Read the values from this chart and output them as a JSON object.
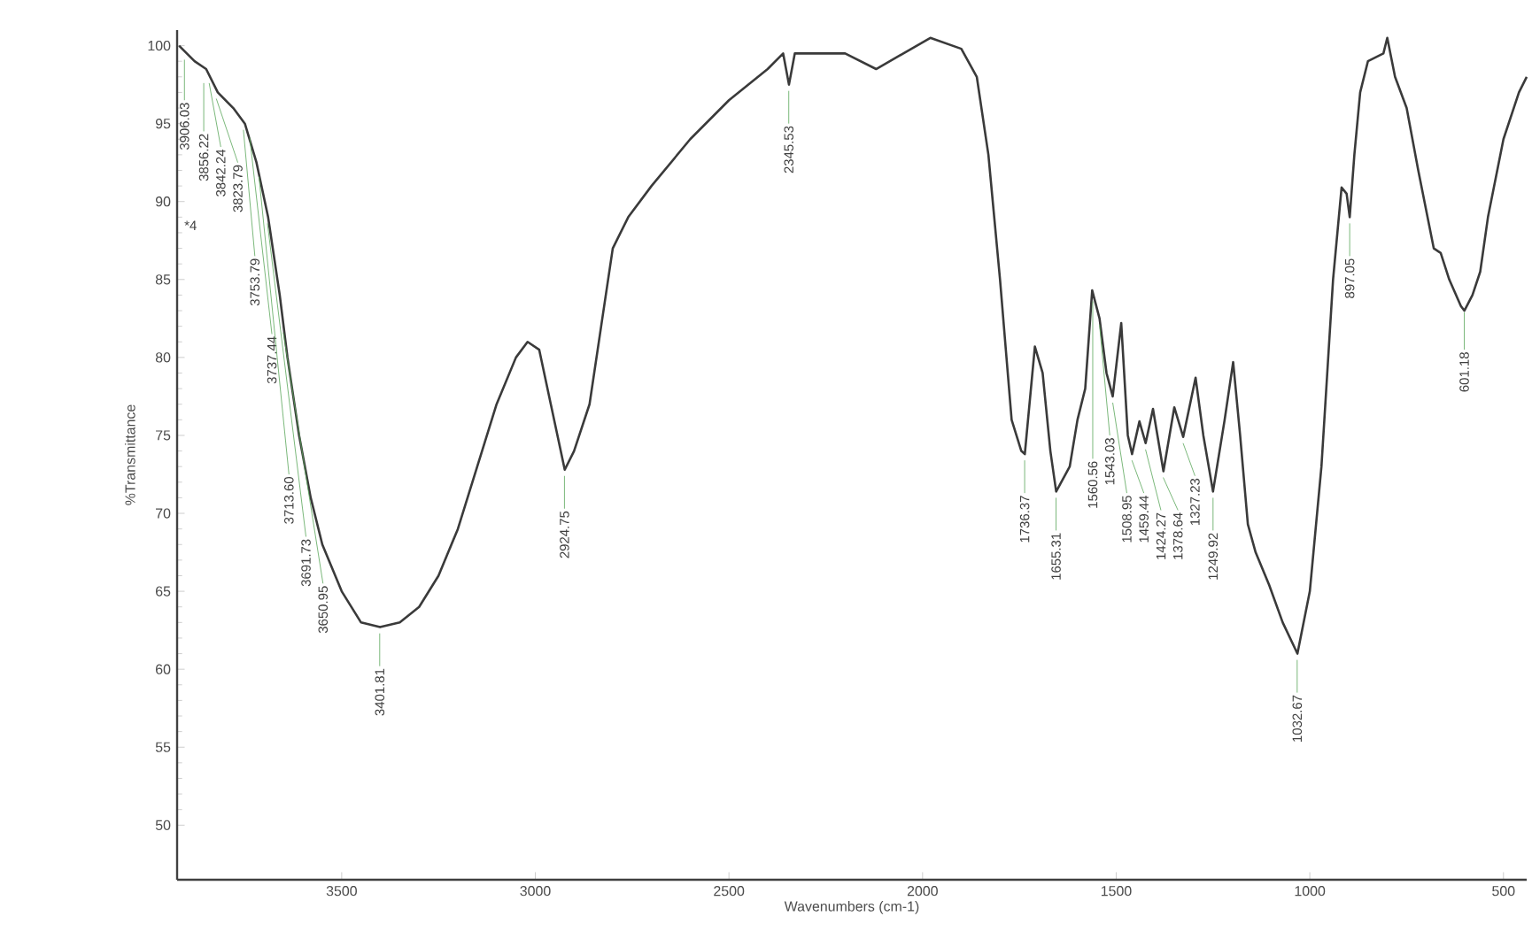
{
  "chart_data": {
    "type": "line",
    "xlabel": "Wavenumbers (cm-1)",
    "ylabel": "%Transmittance",
    "xlim": [
      3925,
      440
    ],
    "ylim": [
      46.5,
      101
    ],
    "xticks": [
      3500,
      3000,
      2500,
      2000,
      1500,
      1000,
      500
    ],
    "yticks": [
      50,
      55,
      60,
      65,
      70,
      75,
      80,
      85,
      90,
      95,
      100
    ],
    "marker": "none",
    "line_style": "solid",
    "series": [
      {
        "color": "#3a3a3a",
        "x": [
          3920,
          3880,
          3850,
          3820,
          3780,
          3750,
          3720,
          3690,
          3660,
          3640,
          3610,
          3580,
          3550,
          3500,
          3450,
          3401,
          3350,
          3300,
          3250,
          3200,
          3150,
          3100,
          3050,
          3020,
          2990,
          2960,
          2924,
          2900,
          2860,
          2830,
          2800,
          2760,
          2700,
          2600,
          2500,
          2400,
          2360,
          2345,
          2330,
          2200,
          2120,
          2050,
          1980,
          1900,
          1860,
          1830,
          1800,
          1770,
          1745,
          1736,
          1710,
          1690,
          1670,
          1655,
          1620,
          1600,
          1580,
          1562,
          1543,
          1525,
          1509,
          1487,
          1470,
          1459,
          1440,
          1424,
          1405,
          1378,
          1350,
          1327,
          1295,
          1275,
          1250,
          1220,
          1198,
          1180,
          1160,
          1140,
          1105,
          1070,
          1032,
          1000,
          970,
          940,
          918,
          905,
          897,
          885,
          870,
          850,
          810,
          800,
          780,
          750,
          720,
          680,
          662,
          640,
          610,
          601,
          580,
          560,
          540,
          500,
          460,
          440
        ],
        "values": [
          100,
          99,
          98.5,
          97,
          96,
          95,
          92.5,
          89,
          84,
          80,
          75,
          71,
          68,
          65,
          63,
          62.7,
          63,
          64,
          66,
          69,
          73,
          77,
          80,
          81,
          80.5,
          77,
          72.8,
          74,
          77,
          82,
          87,
          89,
          91,
          94,
          96.5,
          98.5,
          99.5,
          97.5,
          99.5,
          99.5,
          98.5,
          99.5,
          100.5,
          99.8,
          98,
          93,
          85,
          76,
          74,
          73.8,
          80.7,
          79,
          74,
          71.4,
          73,
          76,
          78,
          84.3,
          82.5,
          79,
          77.5,
          82.2,
          75,
          73.8,
          75.9,
          74.5,
          76.7,
          72.7,
          76.8,
          74.9,
          78.7,
          75,
          71.4,
          76,
          79.7,
          75,
          69.3,
          67.5,
          65.4,
          63,
          61,
          65,
          73,
          85,
          90.9,
          90.5,
          89,
          93,
          97,
          99,
          99.5,
          100.5,
          98,
          96,
          92,
          87,
          86.7,
          85,
          83.3,
          83,
          84,
          85.5,
          89,
          94,
          97,
          98
        ]
      }
    ],
    "annotations": [
      "*4",
      {
        "text": "3906.03",
        "x": 3906.03,
        "y": 99.5
      },
      {
        "text": "3856.22",
        "x": 3856.22,
        "y": 98
      },
      {
        "text": "3842.24",
        "x": 3842.24,
        "y": 98
      },
      {
        "text": "3823.79",
        "x": 3823.79,
        "y": 97
      },
      {
        "text": "3753.79",
        "x": 3753.79,
        "y": 95
      },
      {
        "text": "3737.44",
        "x": 3737.44,
        "y": 94.5
      },
      {
        "text": "3713.60",
        "x": 3713.6,
        "y": 92
      },
      {
        "text": "3691.73",
        "x": 3691.73,
        "y": 89
      },
      {
        "text": "3650.95",
        "x": 3650.95,
        "y": 82
      },
      {
        "text": "3401.81",
        "x": 3401.81,
        "y": 62.7
      },
      {
        "text": "2924.75",
        "x": 2924.75,
        "y": 72.8
      },
      {
        "text": "2345.53",
        "x": 2345.53,
        "y": 97.5
      },
      {
        "text": "1736.37",
        "x": 1736.37,
        "y": 73.8
      },
      {
        "text": "1655.31",
        "x": 1655.31,
        "y": 71.4
      },
      {
        "text": "1560.56",
        "x": 1560.56,
        "y": 84
      },
      {
        "text": "1543.03",
        "x": 1543.03,
        "y": 82.5
      },
      {
        "text": "1508.95",
        "x": 1508.95,
        "y": 77.5
      },
      {
        "text": "1459.44",
        "x": 1459.44,
        "y": 73.8
      },
      {
        "text": "1424.27",
        "x": 1424.27,
        "y": 74.5
      },
      {
        "text": "1378.64",
        "x": 1378.64,
        "y": 72.7
      },
      {
        "text": "1327.23",
        "x": 1327.23,
        "y": 74.9
      },
      {
        "text": "1249.92",
        "x": 1249.92,
        "y": 71.4
      },
      {
        "text": "1032.67",
        "x": 1032.67,
        "y": 61
      },
      {
        "text": "897.05",
        "x": 897.05,
        "y": 89
      },
      {
        "text": "601.18",
        "x": 601.18,
        "y": 83.3
      }
    ]
  }
}
